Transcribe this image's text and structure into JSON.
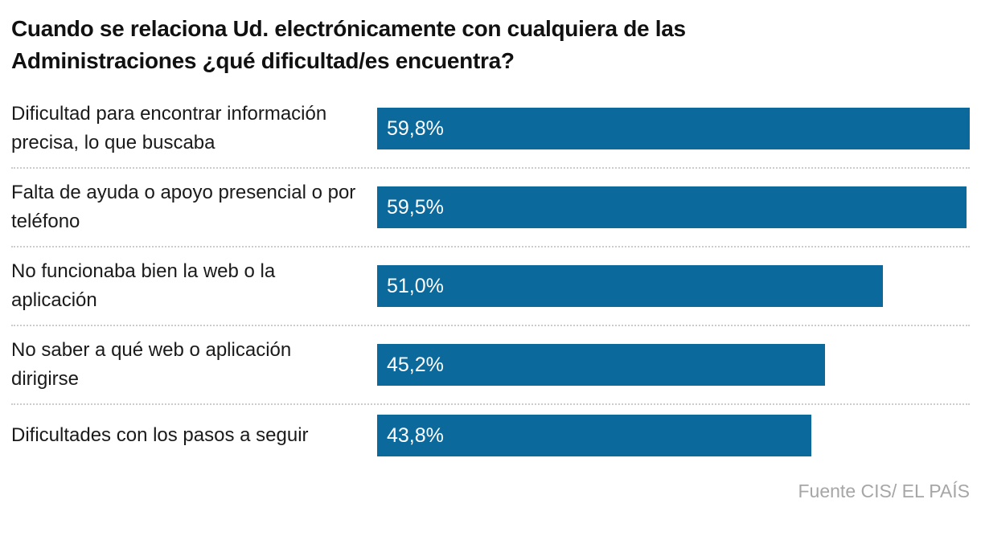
{
  "title": "Cuando se relaciona Ud. electrónicamente con cualquiera de las Administraciones ¿qué dificultad/es encuentra?",
  "source": "Fuente CIS/ EL PAÍS",
  "colors": {
    "bar": "#0c699c",
    "title_text": "#111111",
    "label_text": "#1a1a1a",
    "value_text": "#ffffff",
    "separator": "#cccccc",
    "source_text": "#a6a6a6"
  },
  "chart_data": {
    "type": "bar",
    "orientation": "horizontal",
    "title": "Cuando se relaciona Ud. electrónicamente con cualquiera de las Administraciones ¿qué dificultad/es encuentra?",
    "categories": [
      "Dificultad para encontrar información precisa, lo que buscaba",
      "Falta de ayuda o apoyo presencial o por teléfono",
      "No funcionaba bien la web o la aplicación",
      "No saber a qué web o aplicación dirigirse",
      "Dificultades con los pasos a seguir"
    ],
    "values": [
      59.8,
      59.5,
      51.0,
      45.2,
      43.8
    ],
    "value_labels": [
      "59,8%",
      "59,5%",
      "51,0%",
      "45,2%",
      "43,8%"
    ],
    "max_value": 59.8,
    "value_label_position": "inside-left",
    "grid": "off",
    "separators": "dotted",
    "source": "Fuente CIS/ EL PAÍS"
  }
}
